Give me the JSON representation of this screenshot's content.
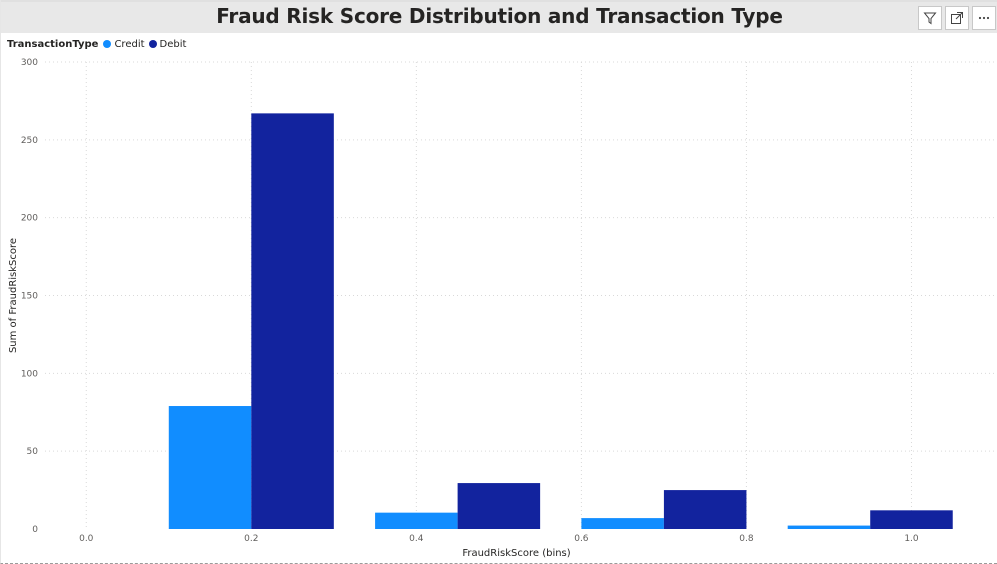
{
  "visual": {
    "title": "Fraud Risk Score Distribution and Transaction Type",
    "header_buttons": [
      {
        "name": "filter-icon"
      },
      {
        "name": "focus-mode-icon"
      },
      {
        "name": "more-options-icon"
      }
    ]
  },
  "legend": {
    "title": "TransactionType",
    "items": [
      {
        "label": "Credit",
        "color": "#118dff"
      },
      {
        "label": "Debit",
        "color": "#12239e"
      }
    ]
  },
  "chart_data": {
    "type": "bar",
    "title": "Fraud Risk Score Distribution and Transaction Type",
    "xlabel": "FraudRiskScore (bins)",
    "ylabel": "Sum of FraudRiskScore",
    "x": [
      0.2,
      0.45,
      0.7,
      0.95
    ],
    "series": [
      {
        "name": "Credit",
        "color": "#118dff",
        "values": [
          79,
          10.5,
          7,
          2.2
        ]
      },
      {
        "name": "Debit",
        "color": "#12239e",
        "values": [
          267,
          29.5,
          25,
          12
        ]
      }
    ],
    "xlim": [
      -0.05,
      1.1
    ],
    "ylim": [
      0,
      300
    ],
    "xticks": [
      0.0,
      0.2,
      0.4,
      0.6,
      0.8,
      1.0
    ],
    "xtick_labels": [
      "0.0",
      "0.2",
      "0.4",
      "0.6",
      "0.8",
      "1.0"
    ],
    "yticks": [
      0,
      50,
      100,
      150,
      200,
      250,
      300
    ],
    "ytick_labels": [
      "0",
      "50",
      "100",
      "150",
      "200",
      "250",
      "300"
    ],
    "grid": true,
    "legend_position": "top-left"
  }
}
